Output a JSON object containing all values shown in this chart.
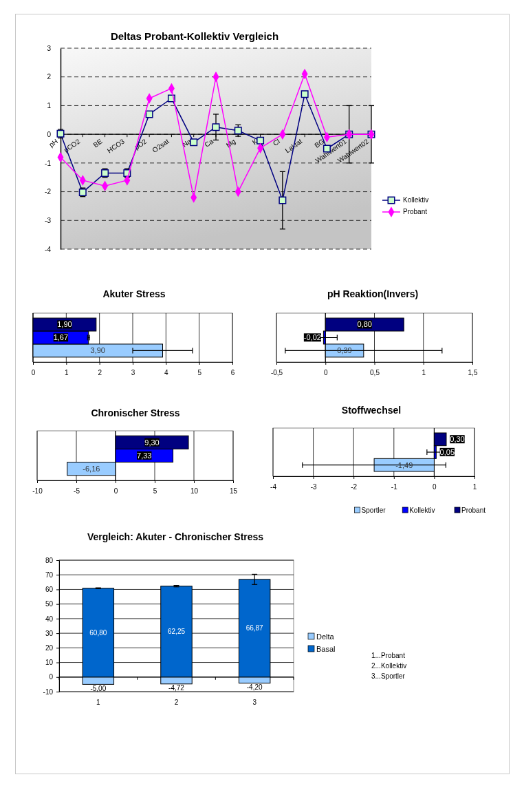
{
  "chart_data": [
    {
      "type": "line",
      "title": "Deltas Probant-Kollektiv Vergleich",
      "categories": [
        "pH",
        "pCO2",
        "BE",
        "HCO3",
        "pO2",
        "O2sat",
        "Na",
        "Ca",
        "Mg",
        "K",
        "Cl",
        "Laktat",
        "BG",
        "Wahlwert01",
        "Wahlwert02"
      ],
      "ylim": [
        -4,
        3
      ],
      "yticks": [
        -4,
        -3,
        -2,
        -1,
        0,
        1,
        2,
        3
      ],
      "grid": "y",
      "legend": "right",
      "line_style": "solid",
      "series": [
        {
          "name": "Kollektiv",
          "color": "#000080",
          "marker": "square",
          "values": [
            0.02,
            -2.02,
            -1.35,
            -1.35,
            0.7,
            1.25,
            -0.28,
            0.25,
            0.13,
            -0.22,
            -2.3,
            1.4,
            -0.5,
            0,
            0
          ],
          "errors": [
            0.15,
            0.15,
            0.15,
            0.15,
            null,
            null,
            null,
            0.45,
            0.2,
            null,
            1,
            null,
            null,
            1,
            1
          ]
        },
        {
          "name": "Probant",
          "color": "#ff00ff",
          "marker": "diamond",
          "values": [
            -0.8,
            -1.6,
            -1.8,
            -1.6,
            1.25,
            1.6,
            -2.2,
            2.0,
            -2.0,
            -0.48,
            0,
            2.1,
            -0.1,
            0,
            0
          ]
        }
      ]
    },
    {
      "type": "bar",
      "orientation": "horizontal",
      "title": "Akuter Stress",
      "categories": [
        null
      ],
      "xlim": [
        0,
        6
      ],
      "xticks": [
        0,
        1,
        2,
        3,
        4,
        5,
        6
      ],
      "grid": "x",
      "legend": false,
      "series": [
        {
          "color": "#99ccff",
          "values": [
            3.9
          ],
          "errors": [
            0.9
          ],
          "value_labels": [
            "3,90"
          ]
        },
        {
          "color": "#0000ff",
          "values": [
            1.67
          ],
          "errors": [
            0.03
          ],
          "value_labels": [
            "1,67"
          ]
        },
        {
          "color": "#000080",
          "values": [
            1.9
          ],
          "value_labels": [
            "1,90"
          ]
        }
      ]
    },
    {
      "type": "bar",
      "orientation": "horizontal",
      "title": "pH Reaktion(Invers)",
      "categories": [
        null
      ],
      "xlim": [
        -0.5,
        1.5
      ],
      "xticks": [
        {
          "value": -0.5,
          "label": "-0,5"
        },
        0,
        {
          "value": 0.5,
          "label": "0,5"
        },
        1,
        {
          "value": 1.5,
          "label": "1,5"
        }
      ],
      "grid": "x",
      "legend": false,
      "series": [
        {
          "color": "#99ccff",
          "values": [
            0.39
          ],
          "errors": [
            0.8
          ],
          "value_labels": [
            "0,39"
          ]
        },
        {
          "color": "#0000ff",
          "values": [
            -0.02
          ],
          "errors": [
            0.14
          ],
          "value_labels": [
            "-0,02"
          ]
        },
        {
          "color": "#000080",
          "values": [
            0.8
          ],
          "value_labels": [
            "0,80"
          ]
        }
      ]
    },
    {
      "type": "bar",
      "orientation": "horizontal",
      "title": "Chronischer Stress",
      "categories": [
        null
      ],
      "xlim": [
        -10,
        15
      ],
      "xticks": [
        -10,
        -5,
        0,
        5,
        10,
        15
      ],
      "grid": "x",
      "legend": false,
      "series": [
        {
          "color": "#99ccff",
          "values": [
            -6.16
          ],
          "value_labels": [
            "-6,16"
          ]
        },
        {
          "color": "#0000ff",
          "values": [
            7.33
          ],
          "value_labels": [
            "7,33"
          ]
        },
        {
          "color": "#000080",
          "values": [
            9.3
          ],
          "value_labels": [
            "9,30"
          ]
        }
      ]
    },
    {
      "type": "bar",
      "orientation": "horizontal",
      "title": "Stoffwechsel",
      "categories": [
        null
      ],
      "xlim": [
        -4,
        1
      ],
      "xticks": [
        -4,
        -3,
        -2,
        -1,
        0,
        1
      ],
      "grid": "x",
      "legend": "bottom",
      "series": [
        {
          "name": "Sportler",
          "color": "#99ccff",
          "values": [
            -1.49
          ],
          "errors": [
            1.78
          ],
          "value_labels": [
            "-1,49"
          ]
        },
        {
          "name": "Kollektiv",
          "color": "#0000ff",
          "values": [
            0.05
          ],
          "errors": [
            0.23
          ],
          "value_labels": [
            "0,05"
          ]
        },
        {
          "name": "Probant",
          "color": "#000080",
          "values": [
            0.3
          ],
          "value_labels": [
            "0,30"
          ]
        }
      ]
    },
    {
      "type": "bar",
      "stacked": true,
      "title": "Vergleich: Akuter - Chronischer Stress",
      "categories": [
        "1",
        "2",
        "3"
      ],
      "ylim": [
        -10,
        80
      ],
      "yticks": [
        -10,
        0,
        10,
        20,
        30,
        40,
        50,
        60,
        70,
        80
      ],
      "grid": "y",
      "legend": "right",
      "series": [
        {
          "name": "Delta",
          "color": "#99ccff",
          "values": [
            -5.0,
            -4.72,
            -4.2
          ],
          "value_labels": [
            "-5,00",
            "-4,72",
            "-4,20"
          ]
        },
        {
          "name": "Basal",
          "color": "#0066cc",
          "values": [
            60.8,
            62.25,
            66.87
          ],
          "errors": [
            0.3,
            0.5,
            3.5
          ],
          "value_labels": [
            "60,80",
            "62,25",
            "66,87"
          ]
        }
      ],
      "annotations": [
        "1...Probant",
        "2...Kollektiv",
        "3...Sportler"
      ]
    }
  ]
}
